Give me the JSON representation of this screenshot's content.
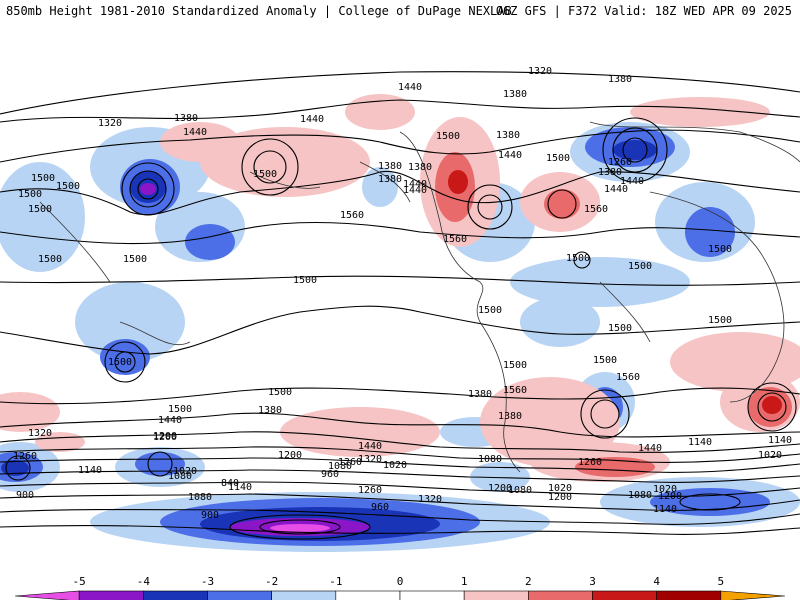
{
  "header": {
    "left": "850mb Height 1981-2010 Standardized Anomaly | College of DuPage NEXLAB",
    "right": "06Z GFS | F372 Valid: 18Z WED APR 09 2025"
  },
  "colors": {
    "neg5": "#e64ee6",
    "neg4": "#8a16c8",
    "neg3": "#1a34b8",
    "neg2": "#4c6fe8",
    "neg1": "#b8d4f4",
    "neutral": "#ffffff",
    "pos1": "#f6c4c4",
    "pos2": "#e86a6a",
    "pos3": "#c81818",
    "pos4": "#a00000",
    "pos5": "#f4a000"
  },
  "colorbar": {
    "ticks": [
      "-5",
      "-4",
      "-3",
      "-2",
      "-1",
      "0",
      "1",
      "2",
      "3",
      "4",
      "5"
    ]
  },
  "contour_labels": [
    "1320",
    "1380",
    "1440",
    "1380",
    "1320",
    "1380",
    "1440",
    "1440",
    "1380",
    "1500",
    "1440",
    "1380",
    "1500",
    "1500",
    "1260",
    "1380",
    "1440",
    "1440",
    "1500",
    "1500",
    "1380",
    "1440",
    "1500",
    "1500",
    "1500",
    "1560",
    "1380",
    "1440",
    "1560",
    "1560",
    "1500",
    "1500",
    "1500",
    "1500",
    "1500",
    "1500",
    "1500",
    "1500",
    "1500",
    "1500",
    "1500",
    "1560",
    "1560",
    "1500",
    "1380",
    "1500",
    "1380",
    "1440",
    "1380",
    "1260",
    "1200",
    "1440",
    "1320",
    "1140",
    "1200",
    "1260",
    "1440",
    "1320",
    "1260",
    "1140",
    "1020",
    "1200",
    "1080",
    "1020",
    "1080",
    "960",
    "1020",
    "1080",
    "1140",
    "1140",
    "1320",
    "1260",
    "960",
    "900",
    "840",
    "1080",
    "1200",
    "1020",
    "1080",
    "1200",
    "1200",
    "1080",
    "900",
    "1020",
    "1140"
  ]
}
